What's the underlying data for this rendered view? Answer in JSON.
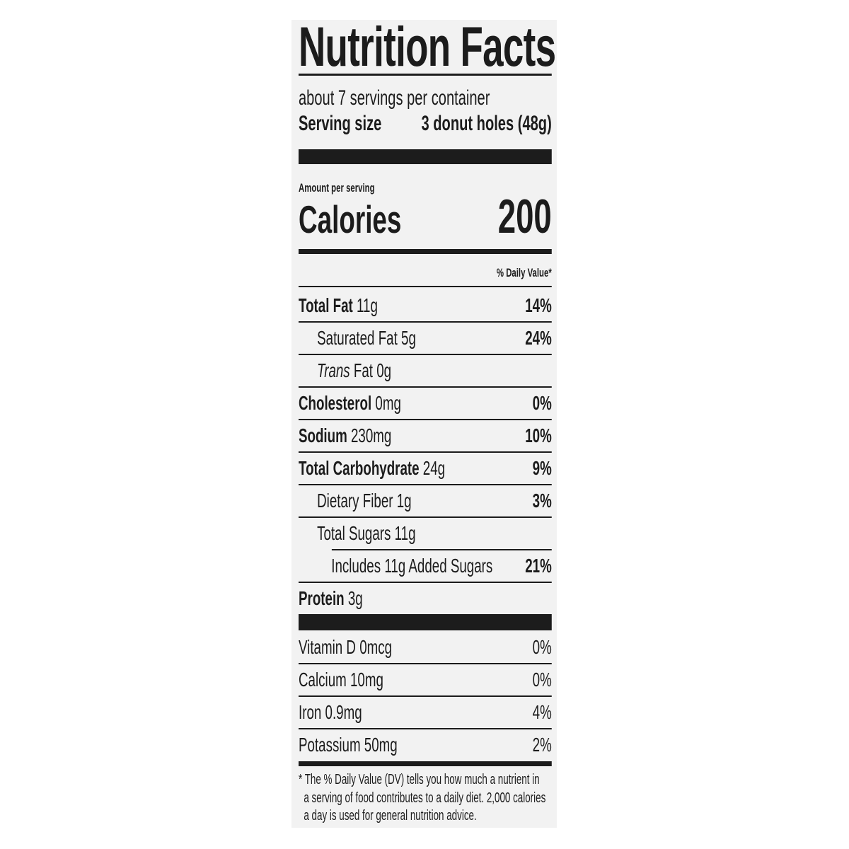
{
  "title": "Nutrition Facts",
  "servings_per_container": "about 7 servings per container",
  "serving_size": {
    "label": "Serving size",
    "value": "3 donut holes (48g)"
  },
  "amount_per_serving": "Amount per serving",
  "calories": {
    "label": "Calories",
    "value": "200"
  },
  "daily_value_header": "% Daily Value*",
  "nutrients": [
    {
      "name": "Total Fat",
      "amount": " 11g",
      "dv": "14%"
    },
    {
      "name": "Saturated Fat 5g",
      "amount": "",
      "dv": "24%"
    },
    {
      "name": "Trans",
      "amount": " Fat 0g",
      "dv": ""
    },
    {
      "name": "Cholesterol",
      "amount": " 0mg",
      "dv": "0%"
    },
    {
      "name": "Sodium",
      "amount": " 230mg",
      "dv": "10%"
    },
    {
      "name": "Total Carbohydrate",
      "amount": " 24g",
      "dv": "9%"
    },
    {
      "name": "Dietary Fiber 1g",
      "amount": "",
      "dv": "3%"
    },
    {
      "name": "Total Sugars 11g",
      "amount": "",
      "dv": ""
    },
    {
      "name": "Includes 11g Added Sugars",
      "amount": "",
      "dv": "21%"
    },
    {
      "name": "Protein",
      "amount": " 3g",
      "dv": ""
    }
  ],
  "vitamins": [
    {
      "name": "Vitamin D 0mcg",
      "dv": "0%"
    },
    {
      "name": "Calcium 10mg",
      "dv": "0%"
    },
    {
      "name": "Iron 0.9mg",
      "dv": "4%"
    },
    {
      "name": "Potassium 50mg",
      "dv": "2%"
    }
  ],
  "footnote": [
    "* The % Daily Value (DV) tells you how much a nutrient in",
    "a serving of food contributes to a daily diet. 2,000 calories",
    "a day is used for general nutrition advice."
  ]
}
